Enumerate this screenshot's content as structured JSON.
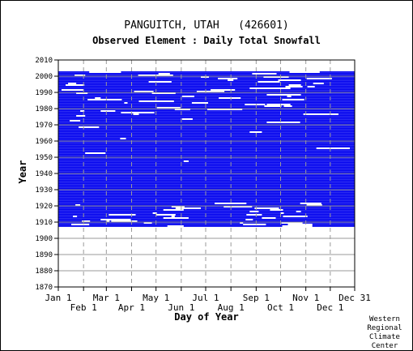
{
  "chart_data": {
    "type": "heatmap",
    "title": "PANGUITCH, UTAH   (426601)",
    "subtitle": "Observed Element : Daily Total Snowfall",
    "xlabel": "Day of Year",
    "ylabel": "Year",
    "credit": [
      "Western",
      "Regional",
      "Climate",
      "Center"
    ],
    "ylim": [
      1870,
      2010
    ],
    "y_ticks": [
      1870,
      1880,
      1890,
      1900,
      1910,
      1920,
      1930,
      1940,
      1950,
      1960,
      1970,
      1980,
      1990,
      2000,
      2010
    ],
    "x_ticks_top_row": [
      {
        "label": "Jan 1",
        "day": 1
      },
      {
        "label": "Mar 1",
        "day": 60
      },
      {
        "label": "May 1",
        "day": 121
      },
      {
        "label": "Jul 1",
        "day": 182
      },
      {
        "label": "Sep 1",
        "day": 244
      },
      {
        "label": "Nov 1",
        "day": 305
      },
      {
        "label": "Dec 31",
        "day": 365
      }
    ],
    "x_ticks_bottom_row": [
      {
        "label": "Feb 1",
        "day": 32
      },
      {
        "label": "Apr 1",
        "day": 91
      },
      {
        "label": "Jun 1",
        "day": 152
      },
      {
        "label": "Aug 1",
        "day": 213
      },
      {
        "label": "Oct 1",
        "day": 274
      },
      {
        "label": "Dec 1",
        "day": 335
      }
    ],
    "xlim": [
      1,
      365
    ],
    "grid": true,
    "data_color": "#0000ee",
    "data_period": [
      1907,
      2002
    ],
    "coverage_by_year": [
      {
        "years": [
          1998,
          2002
        ],
        "days": [
          1,
          365
        ],
        "note": "partial, scattered gaps"
      },
      {
        "years": [
          1987,
          1997
        ],
        "days": [
          1,
          365
        ]
      },
      {
        "years": [
          1976,
          1986
        ],
        "days": [
          1,
          365
        ],
        "note": "many gaps Jan–Mar"
      },
      {
        "years": [
          1940,
          1975
        ],
        "days": [
          1,
          365
        ],
        "note": "nearly complete"
      },
      {
        "years": [
          1922,
          1939
        ],
        "days": [
          1,
          365
        ],
        "note": "complete"
      },
      {
        "years": [
          1915,
          1921
        ],
        "days": [
          1,
          365
        ],
        "note": "gaps mid-year"
      },
      {
        "years": [
          1907,
          1914
        ],
        "days": [
          1,
          365
        ],
        "note": "fragmentary"
      }
    ]
  }
}
